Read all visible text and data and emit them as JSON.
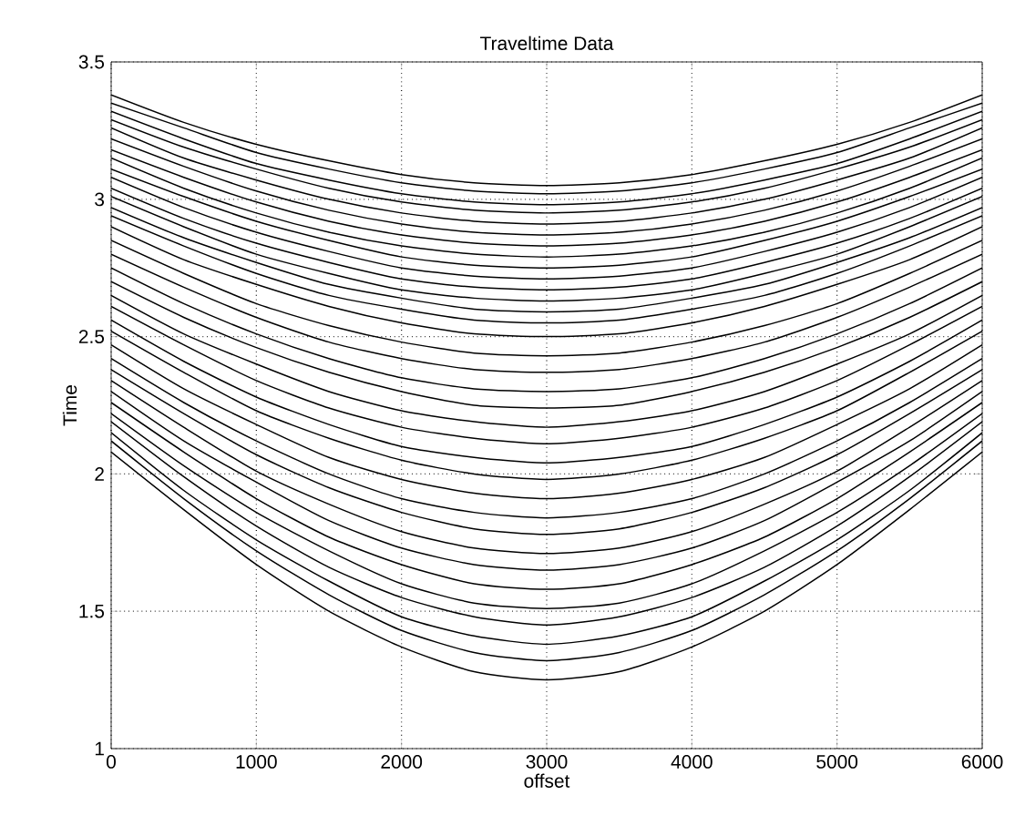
{
  "chart_data": {
    "type": "line",
    "title": "Traveltime Data",
    "xlabel": "offset",
    "ylabel": "Time",
    "xlim": [
      0,
      6000
    ],
    "ylim": [
      1,
      3.5
    ],
    "xticks": [
      0,
      1000,
      2000,
      3000,
      4000,
      5000,
      6000
    ],
    "yticks": [
      1,
      1.5,
      2,
      2.5,
      3,
      3.5
    ],
    "grid": true,
    "marker": "none",
    "line_style": "solid",
    "color": "#000000",
    "x": [
      0,
      500,
      1000,
      1500,
      2000,
      2500,
      3000,
      3500,
      4000,
      4500,
      5000,
      5500,
      6000
    ],
    "series": [
      {
        "values": [
          2.08,
          1.87,
          1.67,
          1.5,
          1.37,
          1.28,
          1.25,
          1.28,
          1.37,
          1.5,
          1.67,
          1.87,
          2.08
        ]
      },
      {
        "values": [
          2.12,
          1.91,
          1.72,
          1.56,
          1.43,
          1.35,
          1.32,
          1.35,
          1.43,
          1.56,
          1.72,
          1.91,
          2.12
        ]
      },
      {
        "values": [
          2.15,
          1.94,
          1.76,
          1.61,
          1.48,
          1.41,
          1.38,
          1.41,
          1.48,
          1.61,
          1.76,
          1.94,
          2.15
        ]
      },
      {
        "values": [
          2.19,
          1.99,
          1.81,
          1.66,
          1.55,
          1.48,
          1.45,
          1.48,
          1.55,
          1.66,
          1.81,
          1.99,
          2.19
        ]
      },
      {
        "values": [
          2.22,
          2.03,
          1.86,
          1.72,
          1.6,
          1.53,
          1.51,
          1.53,
          1.6,
          1.72,
          1.86,
          2.03,
          2.22
        ]
      },
      {
        "values": [
          2.26,
          2.08,
          1.91,
          1.77,
          1.67,
          1.6,
          1.58,
          1.6,
          1.67,
          1.77,
          1.91,
          2.08,
          2.26
        ]
      },
      {
        "values": [
          2.3,
          2.12,
          1.97,
          1.83,
          1.73,
          1.67,
          1.65,
          1.67,
          1.73,
          1.83,
          1.97,
          2.12,
          2.3
        ]
      },
      {
        "values": [
          2.34,
          2.17,
          2.01,
          1.89,
          1.79,
          1.73,
          1.71,
          1.73,
          1.79,
          1.89,
          2.01,
          2.17,
          2.34
        ]
      },
      {
        "values": [
          2.38,
          2.22,
          2.07,
          1.95,
          1.86,
          1.8,
          1.78,
          1.8,
          1.86,
          1.95,
          2.07,
          2.22,
          2.38
        ]
      },
      {
        "values": [
          2.42,
          2.26,
          2.12,
          2.0,
          1.91,
          1.86,
          1.84,
          1.86,
          1.91,
          2.0,
          2.12,
          2.26,
          2.42
        ]
      },
      {
        "values": [
          2.47,
          2.31,
          2.18,
          2.06,
          1.98,
          1.93,
          1.91,
          1.93,
          1.98,
          2.06,
          2.18,
          2.31,
          2.47
        ]
      },
      {
        "values": [
          2.52,
          2.37,
          2.23,
          2.13,
          2.05,
          2.0,
          1.98,
          2.0,
          2.05,
          2.13,
          2.23,
          2.37,
          2.52
        ]
      },
      {
        "values": [
          2.56,
          2.41,
          2.28,
          2.18,
          2.1,
          2.06,
          2.04,
          2.06,
          2.1,
          2.18,
          2.28,
          2.41,
          2.56
        ]
      },
      {
        "values": [
          2.61,
          2.47,
          2.34,
          2.24,
          2.17,
          2.13,
          2.11,
          2.13,
          2.17,
          2.24,
          2.34,
          2.47,
          2.61
        ]
      },
      {
        "values": [
          2.65,
          2.51,
          2.4,
          2.3,
          2.23,
          2.19,
          2.17,
          2.19,
          2.23,
          2.3,
          2.4,
          2.51,
          2.65
        ]
      },
      {
        "values": [
          2.7,
          2.57,
          2.46,
          2.37,
          2.3,
          2.25,
          2.24,
          2.25,
          2.3,
          2.37,
          2.46,
          2.57,
          2.7
        ]
      },
      {
        "values": [
          2.75,
          2.62,
          2.51,
          2.42,
          2.35,
          2.31,
          2.3,
          2.31,
          2.35,
          2.42,
          2.51,
          2.62,
          2.75
        ]
      },
      {
        "values": [
          2.8,
          2.68,
          2.57,
          2.48,
          2.42,
          2.38,
          2.37,
          2.38,
          2.42,
          2.48,
          2.57,
          2.68,
          2.8
        ]
      },
      {
        "values": [
          2.85,
          2.73,
          2.62,
          2.54,
          2.48,
          2.44,
          2.43,
          2.44,
          2.48,
          2.54,
          2.62,
          2.73,
          2.85
        ]
      },
      {
        "values": [
          2.9,
          2.78,
          2.69,
          2.61,
          2.55,
          2.51,
          2.5,
          2.51,
          2.55,
          2.61,
          2.69,
          2.78,
          2.9
        ]
      },
      {
        "values": [
          2.94,
          2.83,
          2.73,
          2.65,
          2.6,
          2.56,
          2.55,
          2.56,
          2.6,
          2.65,
          2.73,
          2.83,
          2.94
        ]
      },
      {
        "values": [
          2.97,
          2.86,
          2.77,
          2.69,
          2.64,
          2.6,
          2.59,
          2.6,
          2.64,
          2.69,
          2.77,
          2.86,
          2.97
        ]
      },
      {
        "values": [
          3.01,
          2.9,
          2.8,
          2.73,
          2.67,
          2.64,
          2.63,
          2.64,
          2.67,
          2.73,
          2.8,
          2.9,
          3.01
        ]
      },
      {
        "values": [
          3.04,
          2.93,
          2.84,
          2.77,
          2.71,
          2.68,
          2.67,
          2.68,
          2.71,
          2.77,
          2.84,
          2.93,
          3.04
        ]
      },
      {
        "values": [
          3.08,
          2.97,
          2.88,
          2.81,
          2.75,
          2.72,
          2.71,
          2.72,
          2.75,
          2.81,
          2.88,
          2.97,
          3.08
        ]
      },
      {
        "values": [
          3.11,
          3.01,
          2.92,
          2.85,
          2.79,
          2.76,
          2.75,
          2.76,
          2.79,
          2.85,
          2.92,
          3.01,
          3.11
        ]
      },
      {
        "values": [
          3.15,
          3.04,
          2.95,
          2.88,
          2.83,
          2.8,
          2.79,
          2.8,
          2.83,
          2.88,
          2.95,
          3.04,
          3.15
        ]
      },
      {
        "values": [
          3.18,
          3.08,
          2.99,
          2.92,
          2.87,
          2.84,
          2.83,
          2.84,
          2.87,
          2.92,
          2.99,
          3.08,
          3.18
        ]
      },
      {
        "values": [
          3.22,
          3.12,
          3.03,
          2.96,
          2.91,
          2.88,
          2.87,
          2.88,
          2.91,
          2.96,
          3.03,
          3.12,
          3.22
        ]
      },
      {
        "values": [
          3.26,
          3.15,
          3.07,
          3.0,
          2.95,
          2.92,
          2.91,
          2.92,
          2.95,
          3.0,
          3.07,
          3.15,
          3.26
        ]
      },
      {
        "values": [
          3.29,
          3.19,
          3.11,
          3.04,
          2.99,
          2.96,
          2.95,
          2.96,
          2.99,
          3.04,
          3.11,
          3.19,
          3.29
        ]
      },
      {
        "values": [
          3.32,
          3.22,
          3.13,
          3.07,
          3.02,
          2.99,
          2.98,
          2.99,
          3.02,
          3.07,
          3.13,
          3.22,
          3.32
        ]
      },
      {
        "values": [
          3.35,
          3.26,
          3.17,
          3.11,
          3.06,
          3.03,
          3.02,
          3.03,
          3.06,
          3.11,
          3.17,
          3.26,
          3.35
        ]
      },
      {
        "values": [
          3.38,
          3.28,
          3.2,
          3.14,
          3.09,
          3.06,
          3.05,
          3.06,
          3.09,
          3.14,
          3.2,
          3.28,
          3.38
        ]
      }
    ]
  }
}
